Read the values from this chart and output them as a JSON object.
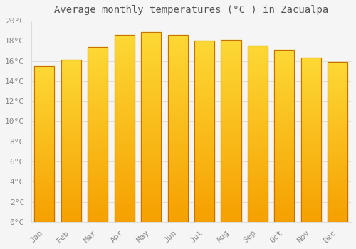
{
  "title": "Average monthly temperatures (°C ) in Zacualpa",
  "months": [
    "Jan",
    "Feb",
    "Mar",
    "Apr",
    "May",
    "Jun",
    "Jul",
    "Aug",
    "Sep",
    "Oct",
    "Nov",
    "Dec"
  ],
  "values": [
    15.5,
    16.1,
    17.4,
    18.6,
    18.9,
    18.6,
    18.0,
    18.1,
    17.5,
    17.1,
    16.3,
    15.9
  ],
  "bar_color_top": "#FDD835",
  "bar_color_bottom": "#F5A000",
  "bar_edge_color": "#C87000",
  "background_color": "#F5F5F5",
  "plot_bg_color": "#F5F5F5",
  "grid_color": "#DDDDDD",
  "ylim": [
    0,
    20
  ],
  "ytick_step": 2,
  "title_fontsize": 10,
  "tick_fontsize": 8,
  "tick_color": "#888888",
  "title_color": "#555555",
  "font_family": "monospace"
}
